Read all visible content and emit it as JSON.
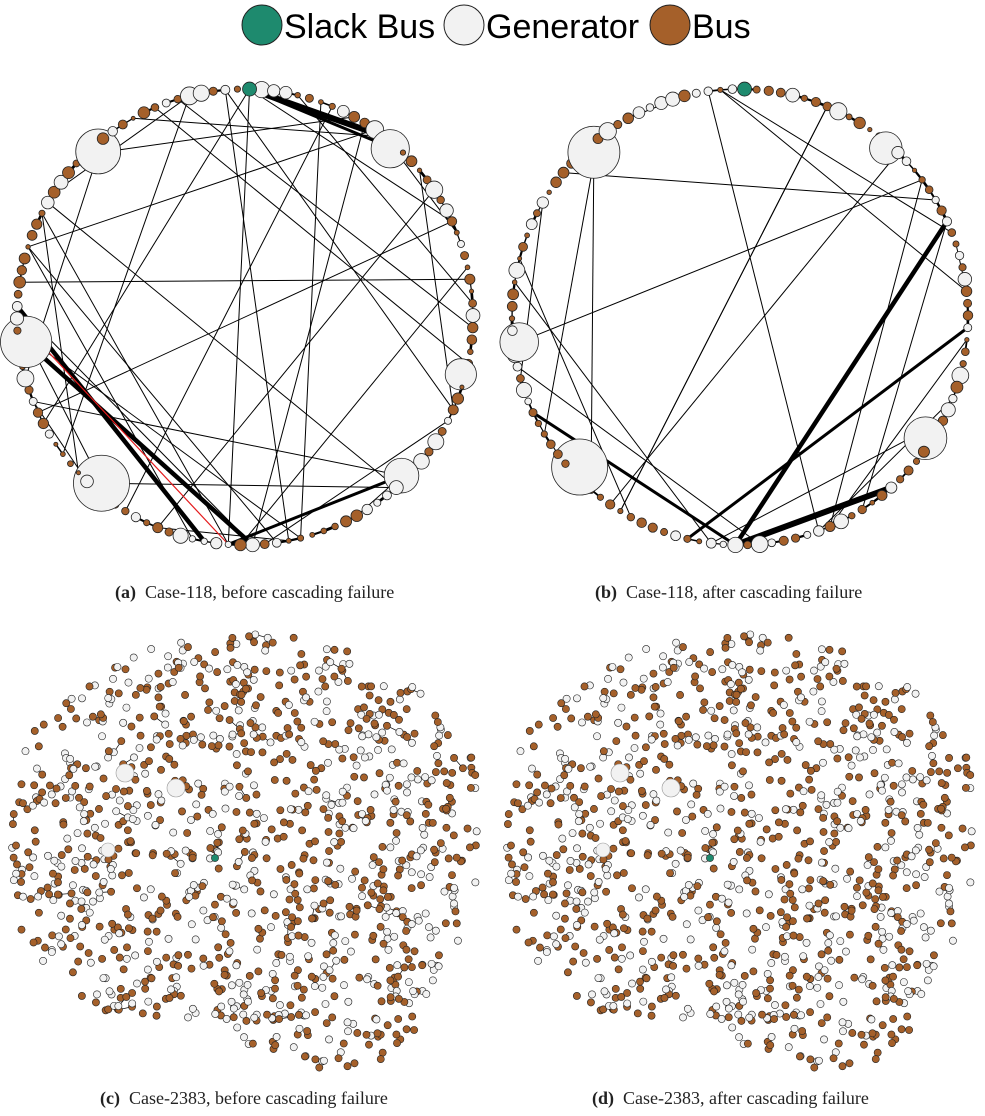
{
  "legend": {
    "items": [
      {
        "label": "Slack Bus",
        "color": "#1e8a6e"
      },
      {
        "label": "Generator",
        "color": "#f2f2f2"
      },
      {
        "label": "Bus",
        "color": "#a5602a"
      }
    ]
  },
  "colors": {
    "slack": "#1e8a6e",
    "generator": "#f2f2f2",
    "bus": "#a5602a",
    "edge": "#000000",
    "edge_failed": "#e41a1c",
    "outline": "#222222"
  },
  "panels": [
    {
      "id": "a",
      "tag": "(a)",
      "text": "Case-118, before cascading failure"
    },
    {
      "id": "b",
      "tag": "(b)",
      "text": "Case-118, after cascading failure"
    },
    {
      "id": "c",
      "tag": "(c)",
      "text": "Case-2383, before cascading failure"
    },
    {
      "id": "d",
      "tag": "(d)",
      "text": "Case-2383, after cascading failure"
    }
  ]
}
